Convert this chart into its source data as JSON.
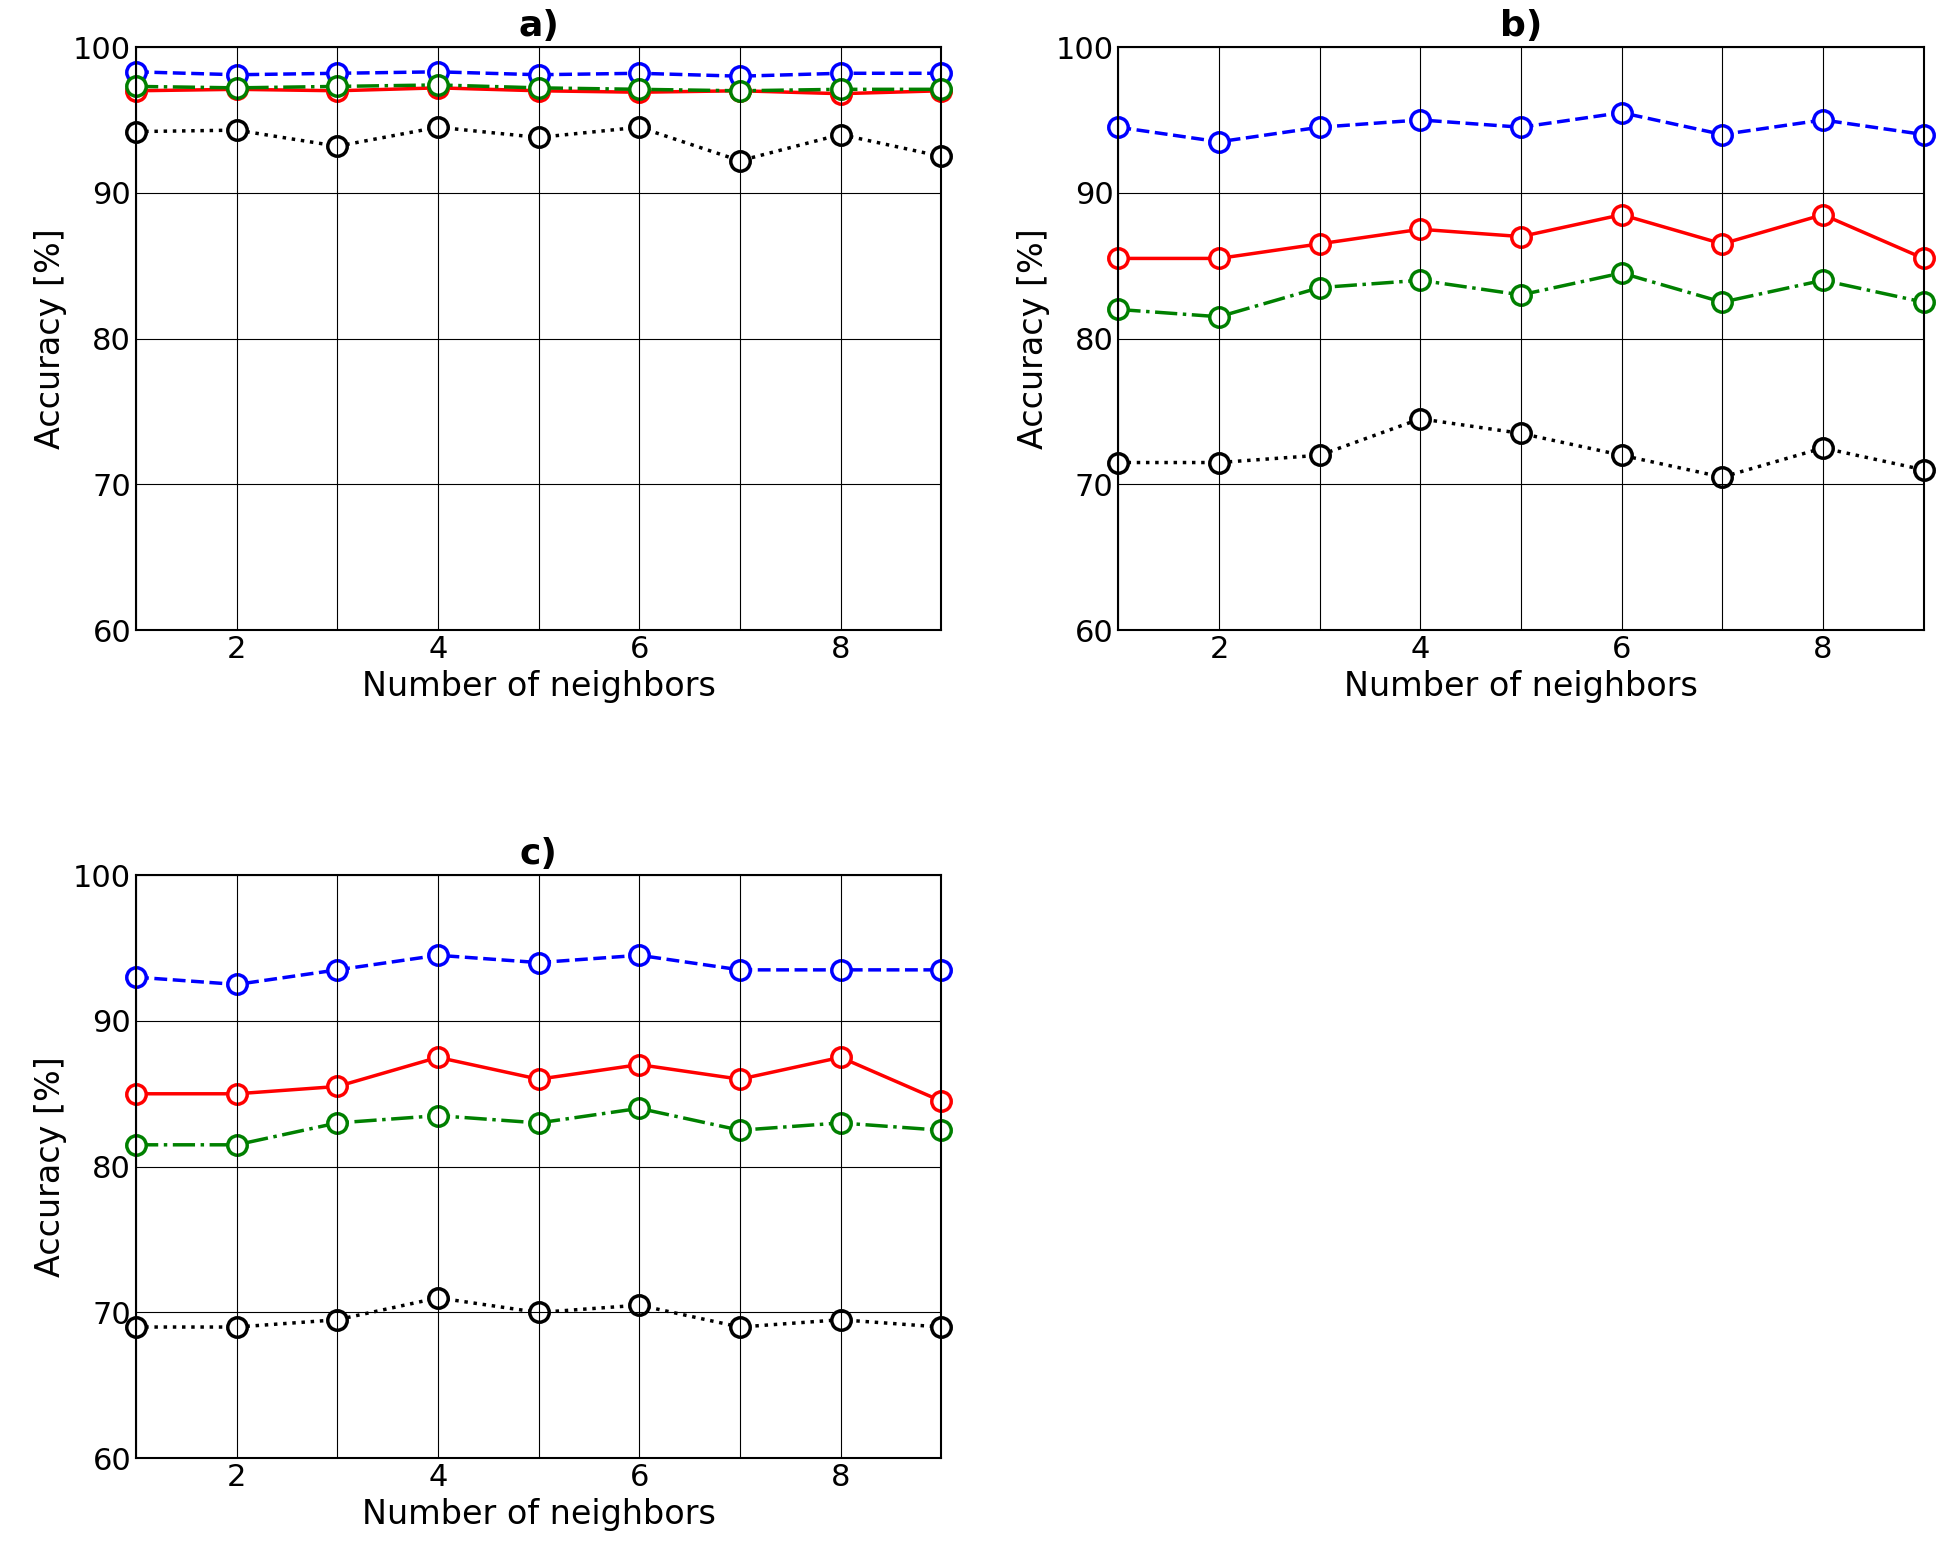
{
  "x": [
    1,
    2,
    3,
    4,
    5,
    6,
    7,
    8,
    9
  ],
  "subplot_a": {
    "title": "a)",
    "euclidean": [
      97.0,
      97.1,
      97.0,
      97.2,
      97.0,
      96.9,
      97.0,
      96.8,
      97.0
    ],
    "cityblock": [
      98.3,
      98.1,
      98.2,
      98.3,
      98.1,
      98.2,
      98.0,
      98.2,
      98.2
    ],
    "chebyshev": [
      94.2,
      94.3,
      93.2,
      94.5,
      93.8,
      94.5,
      92.2,
      94.0,
      92.5
    ],
    "mahalanobis": [
      97.3,
      97.2,
      97.3,
      97.4,
      97.2,
      97.1,
      97.0,
      97.1,
      97.1
    ]
  },
  "subplot_b": {
    "title": "b)",
    "euclidean": [
      85.5,
      85.5,
      86.5,
      87.5,
      87.0,
      88.5,
      86.5,
      88.5,
      85.5
    ],
    "cityblock": [
      94.5,
      93.5,
      94.5,
      95.0,
      94.5,
      95.5,
      94.0,
      95.0,
      94.0
    ],
    "chebyshev": [
      71.5,
      71.5,
      72.0,
      74.5,
      73.5,
      72.0,
      70.5,
      72.5,
      71.0
    ],
    "mahalanobis": [
      82.0,
      81.5,
      83.5,
      84.0,
      83.0,
      84.5,
      82.5,
      84.0,
      82.5
    ]
  },
  "subplot_c": {
    "title": "c)",
    "euclidean": [
      85.0,
      85.0,
      85.5,
      87.5,
      86.0,
      87.0,
      86.0,
      87.5,
      84.5
    ],
    "cityblock": [
      93.0,
      92.5,
      93.5,
      94.5,
      94.0,
      94.5,
      93.5,
      93.5,
      93.5
    ],
    "chebyshev": [
      69.0,
      69.0,
      69.5,
      71.0,
      70.0,
      70.5,
      69.0,
      69.5,
      69.0
    ],
    "mahalanobis": [
      81.5,
      81.5,
      83.0,
      83.5,
      83.0,
      84.0,
      82.5,
      83.0,
      82.5
    ]
  },
  "colors": {
    "euclidean": "red",
    "cityblock": "blue",
    "chebyshev": "black",
    "mahalanobis": "green"
  },
  "linestyles": {
    "euclidean": "-",
    "cityblock": "--",
    "chebyshev": ":",
    "mahalanobis": "-."
  },
  "ylim": [
    60,
    100
  ],
  "yticks": [
    60,
    70,
    80,
    90,
    100
  ],
  "xticks": [
    1,
    2,
    3,
    4,
    5,
    6,
    7,
    8,
    9
  ],
  "xticklabels": [
    "",
    "2",
    "",
    "4",
    "",
    "6",
    "",
    "8",
    ""
  ],
  "xlabel": "Number of neighbors",
  "ylabel": "Accuracy [%]",
  "marker": "o",
  "markersize": 14,
  "linewidth": 2.5,
  "markerfacecolor": "white",
  "markeredgewidth": 2.5,
  "tick_fontsize": 22,
  "label_fontsize": 24,
  "title_fontsize": 26
}
